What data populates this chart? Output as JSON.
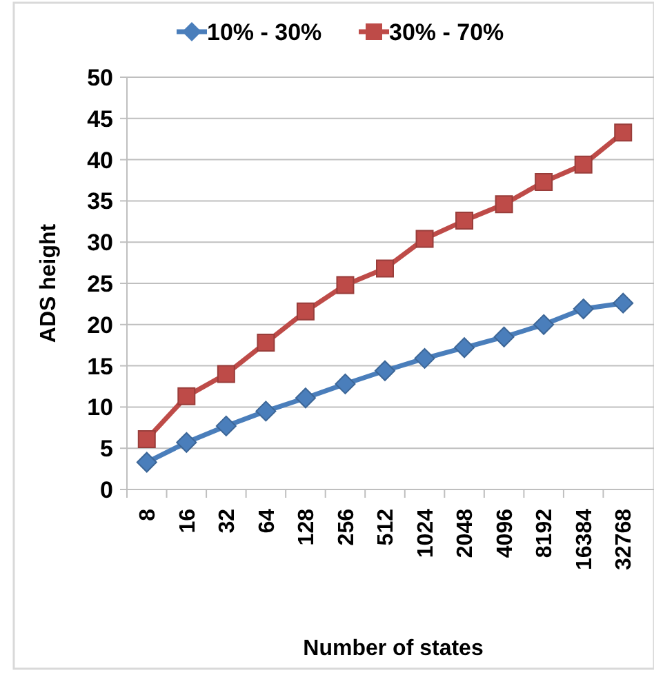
{
  "chart_data": {
    "type": "line",
    "xlabel": "Number of states",
    "ylabel": "ADS height",
    "categories": [
      "8",
      "16",
      "32",
      "64",
      "128",
      "256",
      "512",
      "1024",
      "2048",
      "4096",
      "8192",
      "16384",
      "32768"
    ],
    "series": [
      {
        "name": "10% - 30%",
        "color": "#4a7ebb",
        "marker": "diamond",
        "values": [
          3.3,
          5.7,
          7.7,
          9.5,
          11.1,
          12.8,
          14.4,
          15.9,
          17.2,
          18.5,
          20.0,
          21.9,
          22.6
        ]
      },
      {
        "name": "30% - 70%",
        "color": "#be4b48",
        "marker": "square",
        "values": [
          6.1,
          11.3,
          14.0,
          17.8,
          21.6,
          24.8,
          26.8,
          30.4,
          32.6,
          34.6,
          37.3,
          39.4,
          43.3
        ]
      }
    ],
    "ylim": [
      0,
      50
    ],
    "yticks": [
      0,
      5,
      10,
      15,
      20,
      25,
      30,
      35,
      40,
      45,
      50
    ],
    "grid": "y",
    "legend": "top"
  }
}
